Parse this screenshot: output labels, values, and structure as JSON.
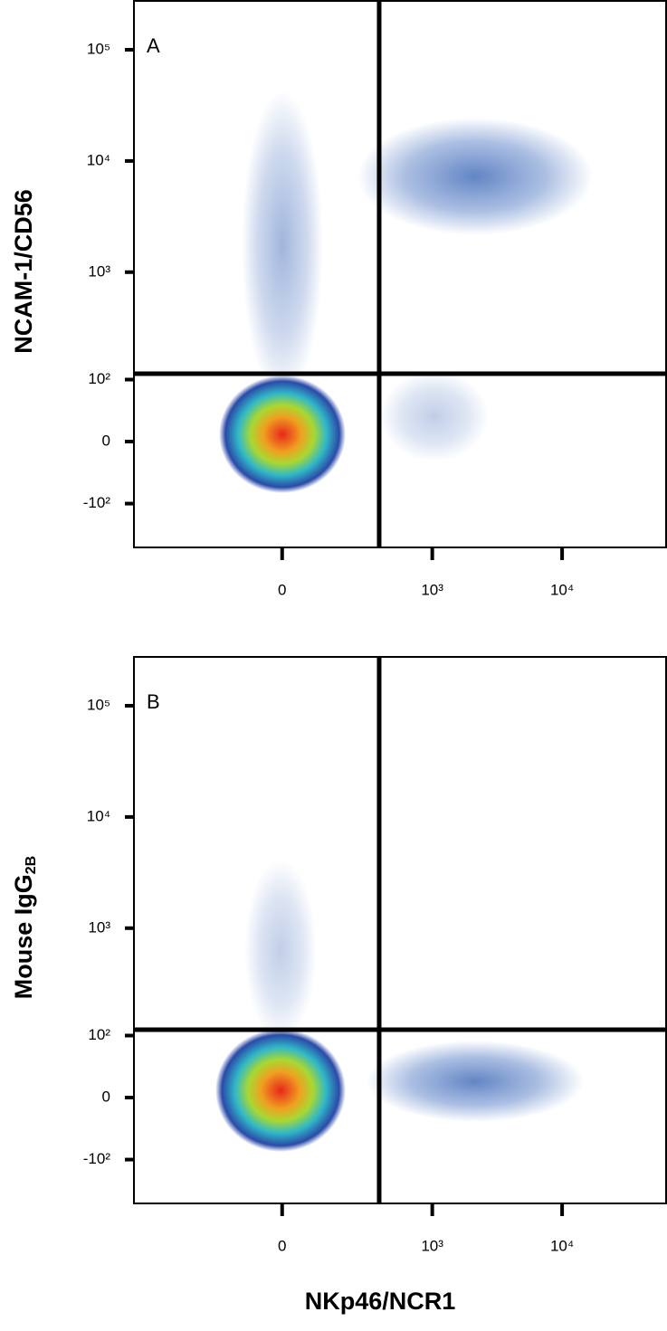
{
  "chart_data": [
    {
      "type": "density",
      "label": "A",
      "ylabel": "NCAM-1/CD56",
      "xlim": [
        -966,
        63000
      ],
      "ylim": [
        -265,
        280000
      ],
      "xticks": [
        0,
        {
          "value": 1000,
          "label": "10³"
        },
        {
          "value": 10000,
          "label": "10⁴"
        }
      ],
      "yticks": [
        {
          "value": -100,
          "label": "-10²"
        },
        0,
        {
          "value": 100,
          "label": "10²"
        },
        {
          "value": 1000,
          "label": "10³"
        },
        {
          "value": 10000,
          "label": "10⁴"
        },
        {
          "value": 100000,
          "label": "10⁵"
        }
      ],
      "x_gate": 380,
      "y_gate": 115
    },
    {
      "type": "density",
      "label": "B",
      "ylabel": "Mouse IgG",
      "ylabel_subscript": "2B",
      "xlabel": "NKp46/NCR1",
      "xlim": [
        -966,
        63000
      ],
      "ylim": [
        -265,
        280000
      ],
      "xticks": [
        0,
        {
          "value": 1000,
          "label": "10³"
        },
        {
          "value": 10000,
          "label": "10⁴"
        }
      ],
      "yticks": [
        {
          "value": -100,
          "label": "-10²"
        },
        0,
        {
          "value": 100,
          "label": "10²"
        },
        {
          "value": 1000,
          "label": "10³"
        },
        {
          "value": 10000,
          "label": "10⁴"
        },
        {
          "value": 100000,
          "label": "10⁵"
        }
      ],
      "x_gate": 380,
      "y_gate": 115
    }
  ]
}
